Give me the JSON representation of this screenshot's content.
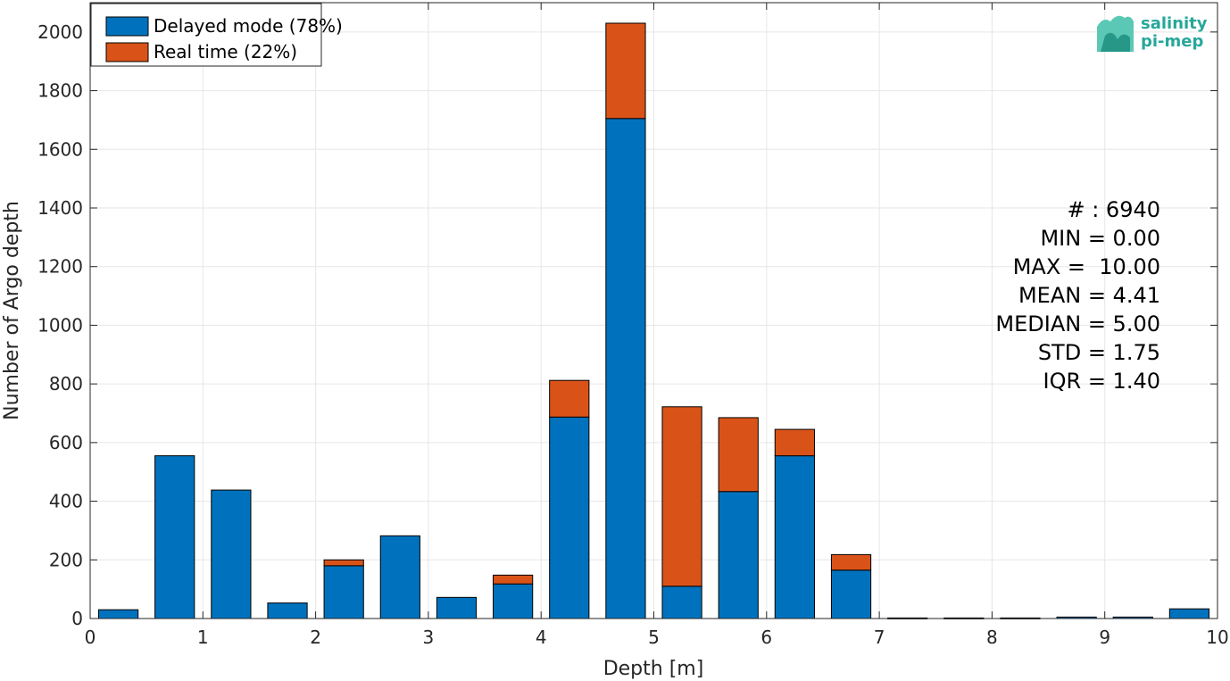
{
  "chart_data": {
    "type": "bar",
    "stacked": true,
    "xlabel": "Depth [m]",
    "ylabel": "Number of Argo depth",
    "xlim": [
      0,
      10
    ],
    "ylim": [
      0,
      2100
    ],
    "xticks": [
      "0",
      "1",
      "2",
      "3",
      "4",
      "5",
      "6",
      "7",
      "8",
      "9",
      "10"
    ],
    "yticks": [
      "0",
      "200",
      "400",
      "600",
      "800",
      "1000",
      "1200",
      "1400",
      "1600",
      "1800",
      "2000"
    ],
    "grid": true,
    "bin_width": 0.5,
    "bin_centers": [
      0.25,
      0.75,
      1.25,
      1.75,
      2.25,
      2.75,
      3.25,
      3.75,
      4.25,
      4.75,
      5.25,
      5.75,
      6.25,
      6.75,
      7.25,
      7.75,
      8.25,
      8.75,
      9.25,
      9.75
    ],
    "legend_position": "top-left",
    "series": [
      {
        "name": "Delayed mode (78%)",
        "color": "#0072bd",
        "values": [
          30,
          555,
          438,
          53,
          180,
          282,
          72,
          118,
          687,
          1705,
          110,
          433,
          555,
          165,
          2,
          2,
          2,
          5,
          5,
          33
        ]
      },
      {
        "name": "Real time (22%)",
        "color": "#d95319",
        "values": [
          0,
          0,
          0,
          0,
          20,
          0,
          0,
          30,
          125,
          325,
          612,
          252,
          90,
          53,
          0,
          0,
          0,
          0,
          0,
          0
        ]
      }
    ],
    "stats": [
      "# : 6940",
      "MIN = 0.00",
      "MAX =  10.00",
      "MEAN = 4.41",
      "MEDIAN = 5.00",
      "STD = 1.75",
      "IQR = 1.40"
    ]
  },
  "logo": {
    "line1": "salinity",
    "line2": "pi-mep",
    "color": "#27a79a"
  }
}
